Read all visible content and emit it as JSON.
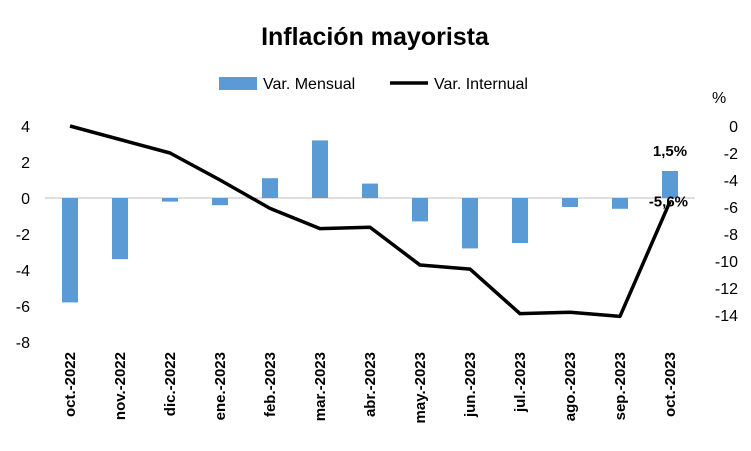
{
  "chart_data": {
    "type": "bar+line",
    "title": "Inflación mayorista",
    "categories": [
      "oct.-2022",
      "nov.-2022",
      "dic.-2022",
      "ene.-2023",
      "feb.-2023",
      "mar.-2023",
      "abr.-2023",
      "may.-2023",
      "jun.-2023",
      "jul.-2023",
      "ago.-2023",
      "sep.-2023",
      "oct.-2023"
    ],
    "series": [
      {
        "name": "Var. Mensual",
        "kind": "bar",
        "axis": "left",
        "color": "#5b9bd5",
        "values": [
          -5.8,
          -3.4,
          -0.2,
          -0.4,
          1.1,
          3.2,
          0.8,
          -1.3,
          -2.8,
          -2.5,
          -0.5,
          -0.6,
          1.5
        ]
      },
      {
        "name": "Var. Internual",
        "kind": "line",
        "axis": "right",
        "color": "#000000",
        "values": [
          0.0,
          -1.0,
          -2.0,
          -4.0,
          -6.1,
          -7.6,
          -7.5,
          -10.3,
          -10.6,
          -13.9,
          -13.8,
          -14.1,
          -5.6
        ]
      }
    ],
    "y_left": {
      "min": -8,
      "max": 4,
      "ticks": [
        "4",
        "2",
        "0",
        "-2",
        "-4",
        "-6",
        "-8"
      ]
    },
    "y_right": {
      "min": -16,
      "max": 0,
      "unit": "%",
      "ticks": [
        "0",
        "-2",
        "-4",
        "-6",
        "-8",
        "-10",
        "-12",
        "-14"
      ]
    },
    "data_labels": [
      "1,5%",
      "-5,6%"
    ],
    "legend_position": "top",
    "grid": false
  }
}
